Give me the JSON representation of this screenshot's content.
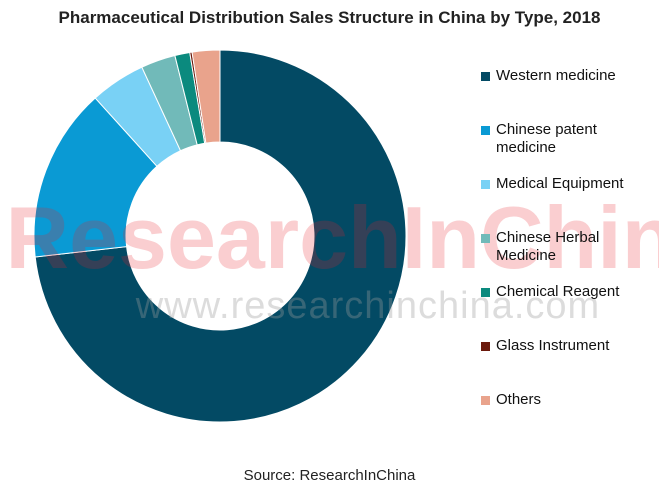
{
  "chart_data": {
    "type": "pie",
    "title": "Pharmaceutical Distribution Sales Structure in China by Type, 2018",
    "categories": [
      "Western medicine",
      "Chinese patent medicine",
      "Medical Equipment",
      "Chinese Herbal Medicine",
      "Chemical Reagent",
      "Glass Instrument",
      "Others"
    ],
    "values": [
      73.2,
      15.1,
      4.8,
      3.0,
      1.3,
      0.2,
      2.4
    ],
    "colors": [
      "#034a64",
      "#0a9ad4",
      "#79d1f5",
      "#71bab9",
      "#0b8a7e",
      "#6b1a0c",
      "#e9a38c"
    ],
    "donut": true,
    "legend_position": "right"
  },
  "title": "Pharmaceutical Distribution Sales Structure in China by Type, 2018",
  "legend": {
    "items": [
      {
        "label": "Western medicine"
      },
      {
        "label": "Chinese patent medicine"
      },
      {
        "label": "Medical Equipment"
      },
      {
        "label": "Chinese Herbal Medicine"
      },
      {
        "label": "Chemical Reagent"
      },
      {
        "label": "Glass Instrument"
      },
      {
        "label": "Others"
      }
    ]
  },
  "watermark": {
    "brand": "ResearchInChina",
    "url": "www.researchinchina.com"
  },
  "source": "Source: ResearchInChina"
}
